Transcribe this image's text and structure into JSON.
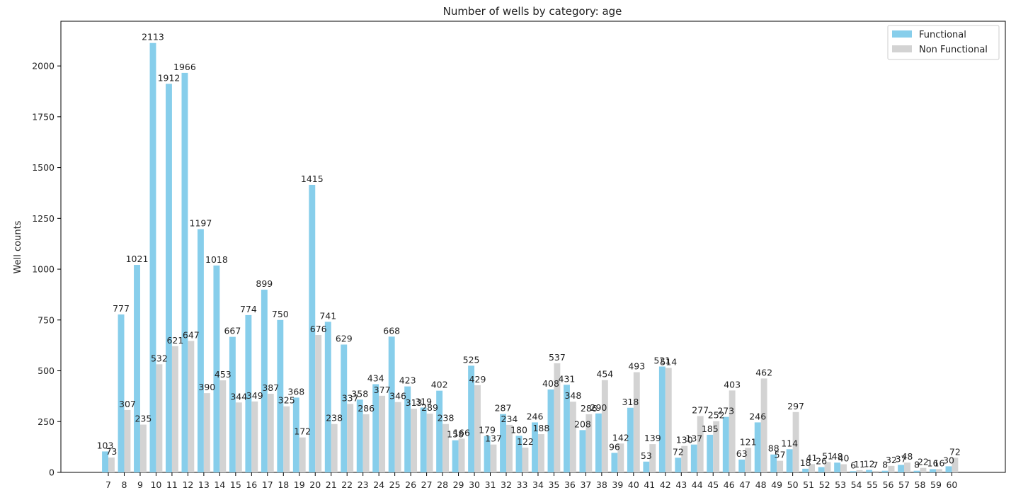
{
  "chart_data": {
    "type": "bar",
    "title": "Number of wells by category: age",
    "xlabel": "",
    "ylabel": "Well counts",
    "categories": [
      "7",
      "8",
      "9",
      "10",
      "11",
      "12",
      "13",
      "14",
      "15",
      "16",
      "17",
      "18",
      "19",
      "20",
      "21",
      "22",
      "23",
      "24",
      "25",
      "26",
      "27",
      "28",
      "29",
      "30",
      "31",
      "32",
      "33",
      "34",
      "35",
      "36",
      "37",
      "38",
      "39",
      "40",
      "41",
      "42",
      "43",
      "44",
      "45",
      "46",
      "47",
      "48",
      "49",
      "50",
      "51",
      "52",
      "53",
      "54",
      "55",
      "56",
      "57",
      "58",
      "59",
      "60"
    ],
    "series": [
      {
        "name": "Functional",
        "color": "#87ceeb",
        "values": [
          103,
          777,
          1021,
          2113,
          1912,
          1966,
          1197,
          1018,
          667,
          774,
          899,
          750,
          368,
          1415,
          741,
          629,
          358,
          434,
          668,
          423,
          319,
          402,
          158,
          525,
          179,
          287,
          180,
          246,
          408,
          431,
          208,
          290,
          96,
          318,
          53,
          521,
          72,
          137,
          185,
          273,
          63,
          246,
          88,
          114,
          18,
          26,
          48,
          6,
          12,
          8,
          37,
          8,
          16,
          30
        ]
      },
      {
        "name": "Non Functional",
        "color": "#d3d3d3",
        "values": [
          73,
          307,
          235,
          532,
          621,
          647,
          390,
          453,
          344,
          349,
          387,
          325,
          172,
          676,
          238,
          337,
          286,
          377,
          346,
          313,
          289,
          238,
          166,
          429,
          137,
          234,
          122,
          188,
          537,
          348,
          286,
          454,
          142,
          493,
          139,
          514,
          130,
          277,
          252,
          403,
          121,
          462,
          57,
          297,
          41,
          51,
          40,
          11,
          7,
          32,
          48,
          22,
          16,
          72
        ]
      }
    ],
    "ylim": [
      0,
      2220
    ],
    "yticks": [
      0,
      250,
      500,
      750,
      1000,
      1250,
      1500,
      1750,
      2000
    ],
    "legend_position": "top-right",
    "grid": false
  }
}
